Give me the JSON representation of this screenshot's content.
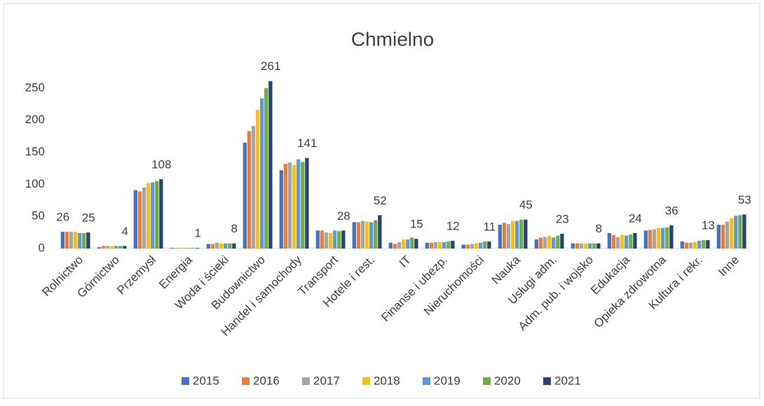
{
  "chart_data": {
    "type": "bar",
    "title": "Chmielno",
    "categories": [
      "Rolnictwo",
      "Górnictwo",
      "Przemysł",
      "Energia",
      "Woda i ścieki",
      "Budownictwo",
      "Handel i samochody",
      "Transport",
      "Hotele i rest.",
      "IT",
      "Finanse i ubezp.",
      "Nieruchomości",
      "Nauka",
      "Usługi adm.",
      "Adm. pub. i wojsko",
      "Edukacja",
      "Opieka zdrowotna",
      "Kultura i rekr.",
      "Inne"
    ],
    "series": [
      {
        "name": "2015",
        "color": "#4472c4",
        "values": [
          26,
          2,
          91,
          1,
          7,
          165,
          122,
          28,
          41,
          9,
          9,
          6,
          37,
          14,
          8,
          24,
          28,
          11,
          37
        ],
        "value_labels": [
          "26",
          null,
          null,
          null,
          null,
          null,
          null,
          null,
          null,
          null,
          null,
          null,
          null,
          null,
          null,
          null,
          null,
          null,
          null
        ]
      },
      {
        "name": "2016",
        "color": "#ed7d31",
        "values": [
          26,
          4,
          89,
          1,
          7,
          183,
          132,
          28,
          41,
          7,
          9,
          6,
          40,
          17,
          8,
          21,
          29,
          9,
          37
        ]
      },
      {
        "name": "2017",
        "color": "#a5a5a5",
        "values": [
          26,
          4,
          95,
          1,
          9,
          191,
          134,
          25,
          43,
          10,
          10,
          7,
          38,
          18,
          8,
          18,
          30,
          9,
          42
        ]
      },
      {
        "name": "2018",
        "color": "#ffc000",
        "values": [
          26,
          4,
          102,
          1,
          8,
          216,
          130,
          24,
          42,
          14,
          10,
          8,
          43,
          20,
          8,
          21,
          32,
          10,
          47
        ]
      },
      {
        "name": "2019",
        "color": "#5b9bd5",
        "values": [
          24,
          4,
          103,
          1,
          8,
          234,
          139,
          28,
          41,
          14,
          10,
          9,
          43,
          17,
          8,
          20,
          32,
          12,
          51
        ]
      },
      {
        "name": "2020",
        "color": "#70ad47",
        "values": [
          24,
          4,
          105,
          1,
          8,
          250,
          135,
          27,
          44,
          17,
          11,
          11,
          45,
          20,
          8,
          22,
          33,
          13,
          52
        ]
      },
      {
        "name": "2021",
        "color": "#264478",
        "values": [
          25,
          4,
          108,
          1,
          8,
          261,
          141,
          28,
          52,
          15,
          12,
          11,
          45,
          23,
          8,
          24,
          36,
          13,
          53
        ],
        "value_labels": [
          "25",
          "4",
          "108",
          "1",
          "8",
          "261",
          "141",
          "28",
          "52",
          "15",
          "12",
          "11",
          "45",
          "23",
          "8",
          "24",
          "36",
          "13",
          "53"
        ]
      }
    ],
    "ylim": [
      0,
      300
    ],
    "yticks": [
      0,
      50,
      100,
      150,
      200,
      250
    ],
    "grid": false
  }
}
